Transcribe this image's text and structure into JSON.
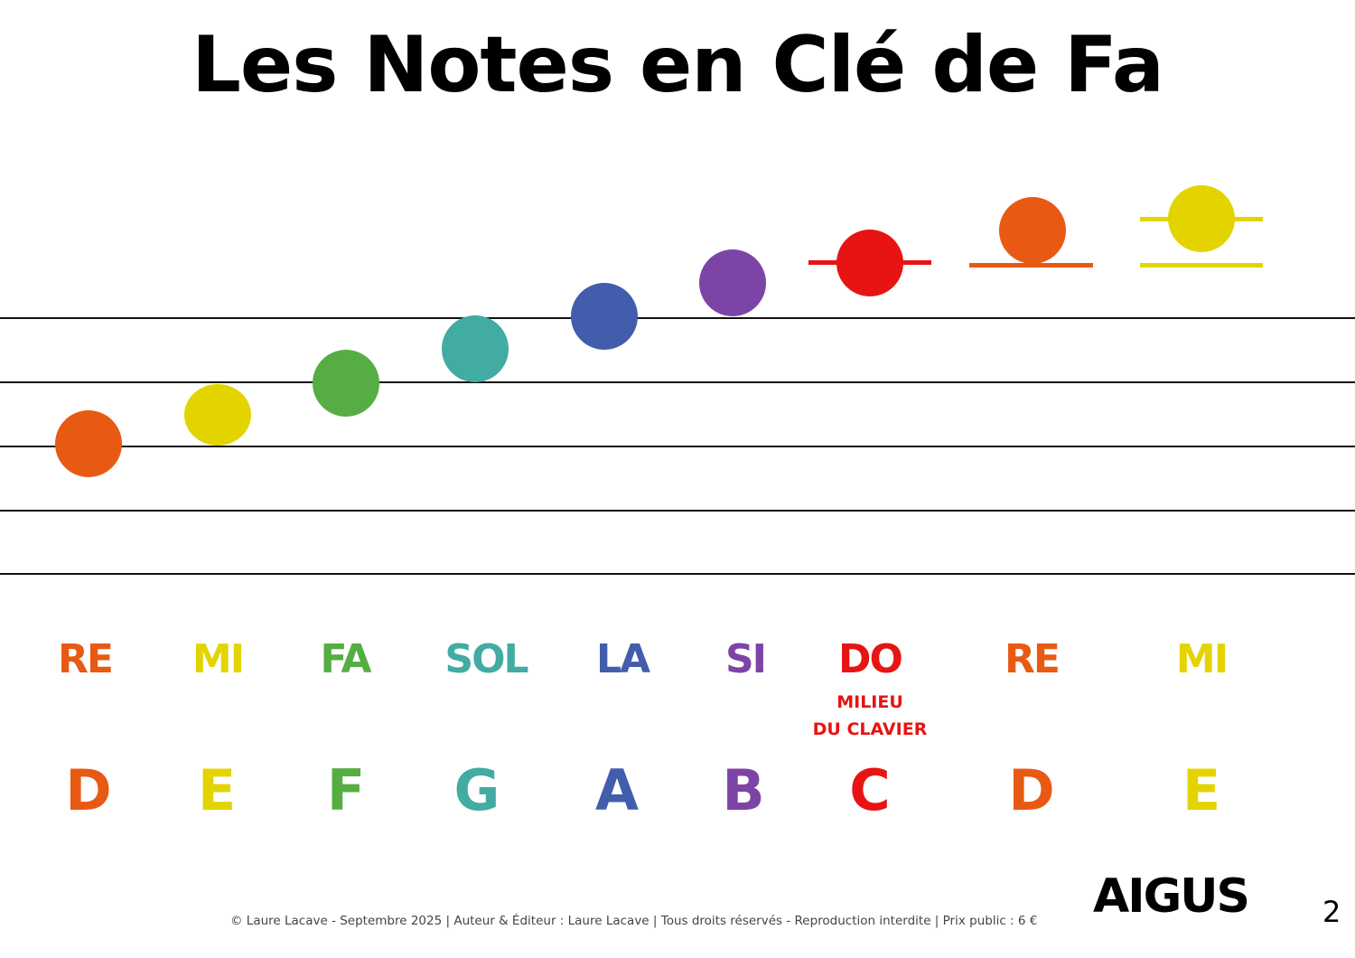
{
  "title": "Les Notes en Clé de Fa",
  "notes": [
    {
      "solfege": "RE",
      "letter": "D",
      "color": "#e85a13"
    },
    {
      "solfege": "MI",
      "letter": "E",
      "color": "#e3d400"
    },
    {
      "solfege": "FA",
      "letter": "F",
      "color": "#55ad43"
    },
    {
      "solfege": "SOL",
      "letter": "G",
      "color": "#42aba2"
    },
    {
      "solfege": "LA",
      "letter": "A",
      "color": "#415dac"
    },
    {
      "solfege": "SI",
      "letter": "B",
      "color": "#7d44a8"
    },
    {
      "solfege": "DO",
      "letter": "C",
      "color": "#e81313"
    },
    {
      "solfege": "RE",
      "letter": "D",
      "color": "#e85a13"
    },
    {
      "solfege": "MI",
      "letter": "E",
      "color": "#e3d400"
    }
  ],
  "do_note": {
    "line1": "MILIEU",
    "line2": "DU CLAVIER"
  },
  "section_label": "AIGUS",
  "page_number": "2",
  "footer": "© Laure Lacave - Septembre 2025 | Auteur & Éditeur : Laure Lacave | Tous droits réservés - Reproduction interdite | Prix public : 6 €"
}
